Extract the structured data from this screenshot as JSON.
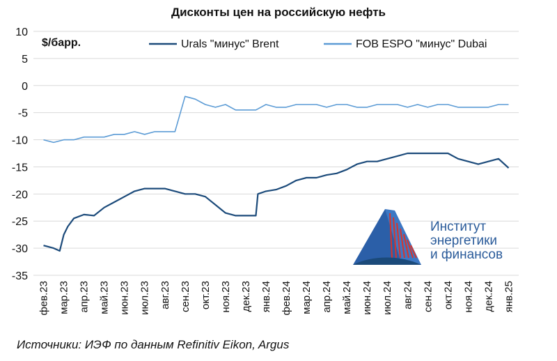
{
  "chart_data": {
    "type": "line",
    "title": "Дисконты цен на российскую нефть",
    "ylabel": "$/барр.",
    "ylim": [
      -35,
      10
    ],
    "yticks": [
      10,
      5,
      0,
      -5,
      -10,
      -15,
      -20,
      -25,
      -30,
      -35
    ],
    "grid": "horizontal",
    "legend": "top-right",
    "categories": [
      "фев.23",
      "мар.23",
      "апр.23",
      "май.23",
      "июн.23",
      "июл.23",
      "авг.23",
      "сен.23",
      "окт.23",
      "ноя.23",
      "дек.23",
      "янв.24",
      "фев.24",
      "мар.24",
      "апр.24",
      "май.24",
      "июн.24",
      "июл.24",
      "авг.24",
      "сен.24",
      "окт.24",
      "ноя.24",
      "дек.24",
      "янв.25"
    ],
    "series": [
      {
        "name": "Urals \"минус\" Brent",
        "color": "#1b4a7a",
        "x": [
          0,
          0.5,
          0.8,
          1.0,
          1.2,
          1.5,
          2.0,
          2.5,
          3.0,
          3.5,
          4.0,
          4.5,
          5.0,
          5.5,
          6.0,
          6.5,
          7.0,
          7.5,
          8.0,
          8.5,
          9.0,
          9.5,
          10.0,
          10.5,
          10.6,
          11.0,
          11.5,
          12.0,
          12.5,
          13.0,
          13.5,
          14.0,
          14.5,
          15.0,
          15.5,
          16.0,
          16.5,
          17.0,
          17.5,
          18.0,
          18.5,
          19.0,
          19.5,
          20.0,
          20.5,
          21.0,
          21.5,
          22.0,
          22.5,
          23.0
        ],
        "values": [
          -29.5,
          -30,
          -30.5,
          -27.5,
          -26,
          -24.5,
          -23.8,
          -24,
          -22.5,
          -21.5,
          -20.5,
          -19.5,
          -19,
          -19,
          -19,
          -19.5,
          -20,
          -20,
          -20.5,
          -22,
          -23.5,
          -24,
          -24,
          -24,
          -20,
          -19.5,
          -19.2,
          -18.5,
          -17.5,
          -17,
          -17,
          -16.5,
          -16.2,
          -15.5,
          -14.5,
          -14,
          -14,
          -13.5,
          -13,
          -12.5,
          -12.5,
          -12.5,
          -12.5,
          -12.5,
          -13.5,
          -14,
          -14.5,
          -14,
          -13.5,
          -15.2
        ]
      },
      {
        "name": "FOB ESPO \"минус\" Dubai",
        "color": "#5b9bd5",
        "x": [
          0,
          0.5,
          1.0,
          1.5,
          2.0,
          2.5,
          3.0,
          3.5,
          4.0,
          4.5,
          5.0,
          5.5,
          6.0,
          6.5,
          7.0,
          7.5,
          8.0,
          8.5,
          9.0,
          9.5,
          10.0,
          10.5,
          11.0,
          11.5,
          12.0,
          12.5,
          13.0,
          13.5,
          14.0,
          14.5,
          15.0,
          15.5,
          16.0,
          16.5,
          17.0,
          17.5,
          18.0,
          18.5,
          19.0,
          19.5,
          20.0,
          20.5,
          21.0,
          21.5,
          22.0,
          22.5,
          23.0
        ],
        "values": [
          -10,
          -10.5,
          -10,
          -10,
          -9.5,
          -9.5,
          -9.5,
          -9,
          -9,
          -8.5,
          -9,
          -8.5,
          -8.5,
          -8.5,
          -2,
          -2.5,
          -3.5,
          -4,
          -3.5,
          -4.5,
          -4.5,
          -4.5,
          -3.5,
          -4,
          -4,
          -3.5,
          -3.5,
          -3.5,
          -4,
          -3.5,
          -3.5,
          -4,
          -4,
          -3.5,
          -3.5,
          -3.5,
          -4,
          -3.5,
          -4,
          -3.5,
          -3.5,
          -4,
          -4,
          -4,
          -4,
          -3.5,
          -3.5
        ]
      }
    ]
  },
  "source": "Источники: ИЭФ по данным Refinitiv Eikon, Argus",
  "logo": {
    "lines": [
      "Институт",
      "энергетики",
      "и финансов"
    ],
    "colors": {
      "text": "#2a5b9a",
      "red": "#d9342b",
      "blue": "#2b5fa8"
    }
  }
}
